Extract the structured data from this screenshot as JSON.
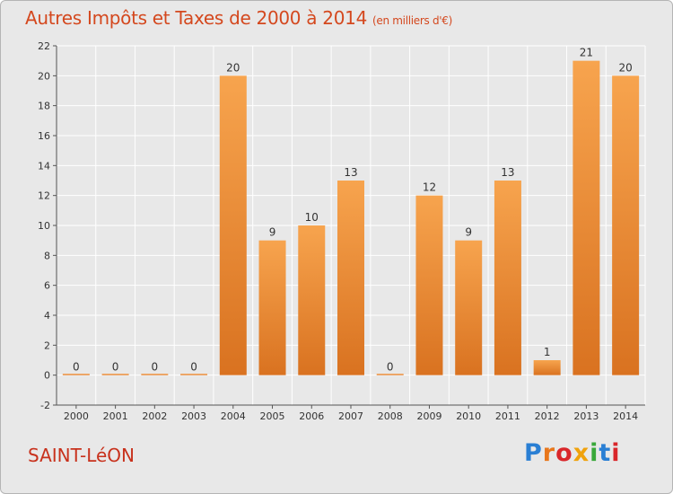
{
  "chart_data": {
    "type": "bar",
    "title": "Autres Impôts et Taxes de 2000 à 2014",
    "unit": "(en milliers d'€)",
    "categories": [
      "2000",
      "2001",
      "2002",
      "2003",
      "2004",
      "2005",
      "2006",
      "2007",
      "2008",
      "2009",
      "2010",
      "2011",
      "2012",
      "2013",
      "2014"
    ],
    "values": [
      0,
      0,
      0,
      0,
      20,
      9,
      10,
      13,
      0,
      12,
      9,
      13,
      1,
      21,
      20
    ],
    "ylim": [
      -2,
      22
    ],
    "yticks": [
      -2,
      0,
      2,
      4,
      6,
      8,
      10,
      12,
      14,
      16,
      18,
      20,
      22
    ],
    "grid": true,
    "colors": {
      "bar_light": "#f7a44e",
      "bar_dark": "#d97220",
      "grid": "#ffffff",
      "title": "#d4481e"
    }
  },
  "footer": {
    "commune": "SAINT-LéON",
    "logo": "Proxiti",
    "logo_colors": [
      "#2a7fd4",
      "#e8771c",
      "#d9262a",
      "#f0a20c",
      "#39a83a",
      "#2a7fd4",
      "#d9262a"
    ]
  }
}
